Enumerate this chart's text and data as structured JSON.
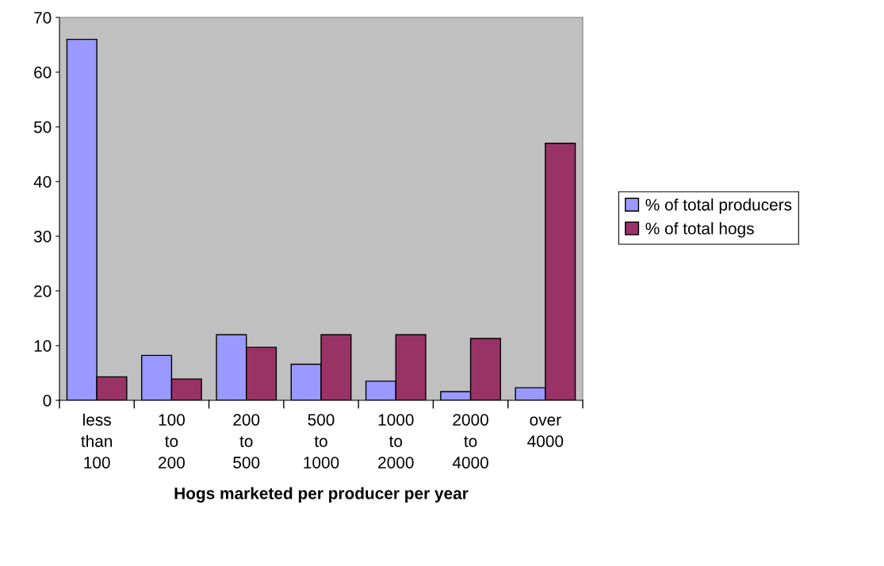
{
  "chart_data": {
    "type": "bar",
    "xlabel": "Hogs marketed per producer per year",
    "categories": [
      "less\nthan\n100",
      "100\nto\n200",
      "200\nto\n500",
      "500\nto\n1000",
      "1000\nto\n2000",
      "2000\nto\n4000",
      "over\n4000"
    ],
    "series": [
      {
        "name": "% of total producers",
        "color": "#9999ff",
        "values": [
          66,
          8.2,
          12,
          6.6,
          3.5,
          1.6,
          2.3
        ]
      },
      {
        "name": "% of total hogs",
        "color": "#993366",
        "values": [
          4.3,
          3.9,
          9.7,
          12,
          12,
          11.3,
          47
        ]
      }
    ],
    "ylim": [
      0,
      70
    ],
    "yticks": [
      0,
      10,
      20,
      30,
      40,
      50,
      60,
      70
    ],
    "grid": false,
    "legend": "right"
  }
}
